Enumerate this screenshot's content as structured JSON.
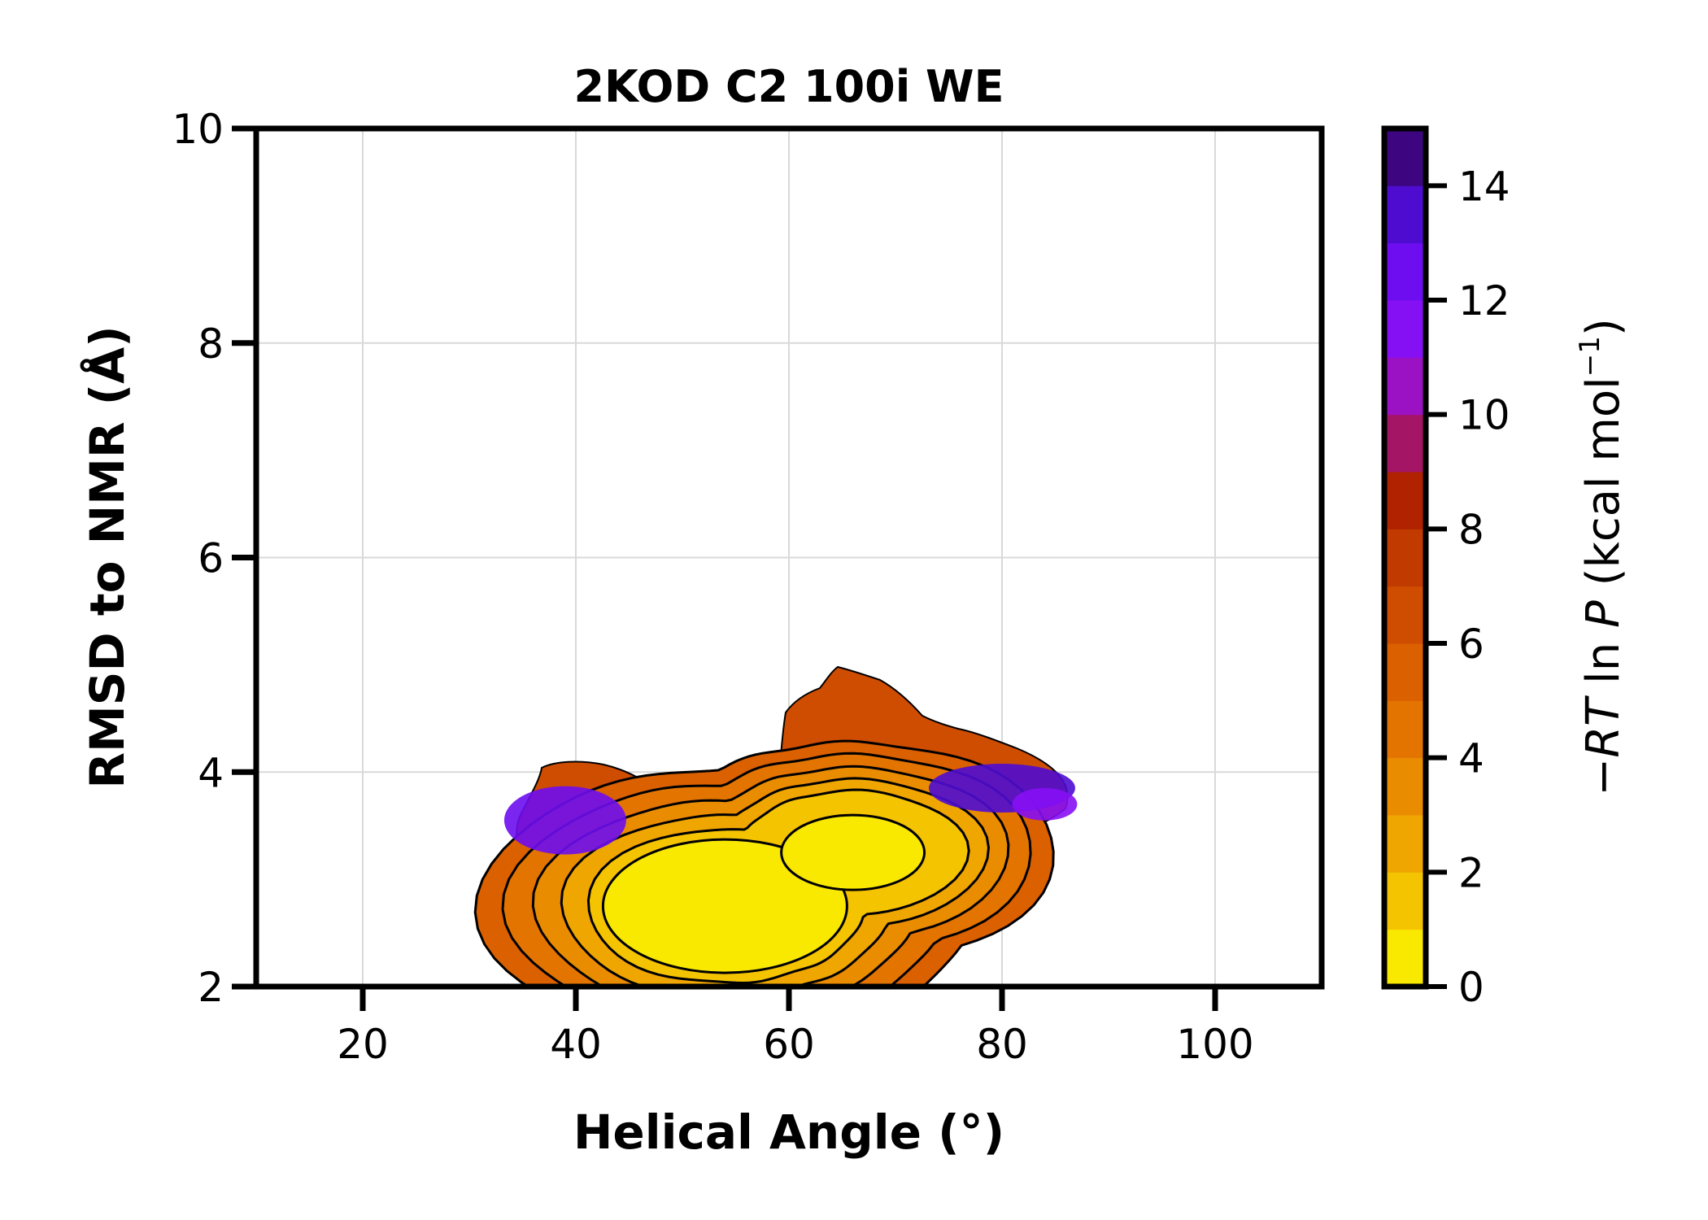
{
  "chart_data": {
    "type": "heatmap",
    "title": "2KOD C2 100i WE",
    "xlabel": "Helical Angle (°)",
    "ylabel": "RMSD to NMR (Å)",
    "xlim": [
      10,
      110
    ],
    "ylim": [
      2,
      10
    ],
    "xticks": [
      20,
      40,
      60,
      80,
      100
    ],
    "yticks": [
      2,
      4,
      6,
      8,
      10
    ],
    "grid": true,
    "colorbar": {
      "label_prefix": "−",
      "label_rt": "RT",
      "label_mid": " ln ",
      "label_p": "P",
      "label_unit": " (kcal mol",
      "label_exp": "−1",
      "label_close": ")",
      "range": [
        0,
        15
      ],
      "ticks": [
        0,
        2,
        4,
        6,
        8,
        10,
        12,
        14
      ],
      "levels": [
        0,
        1,
        2,
        3,
        4,
        5,
        6,
        7,
        8,
        9,
        10,
        11,
        12,
        13,
        14,
        15
      ],
      "colors": [
        "#f9e800",
        "#f5c400",
        "#f0a600",
        "#ea8c00",
        "#e37400",
        "#db6000",
        "#cf4d00",
        "#c13b00",
        "#b02200",
        "#a51565",
        "#9b11c4",
        "#8610f4",
        "#6d0df0",
        "#4e0cd1",
        "#3d0680",
        "#230425"
      ],
      "colormap": "gnuplot-like"
    },
    "basins": [
      {
        "center": [
          54,
          2.75
        ],
        "depth": 0
      },
      {
        "center": [
          66,
          3.25
        ],
        "depth": 0
      }
    ],
    "sampled_region": {
      "x_range": [
        34,
        87
      ],
      "y_range": [
        2.1,
        5.0
      ]
    }
  }
}
